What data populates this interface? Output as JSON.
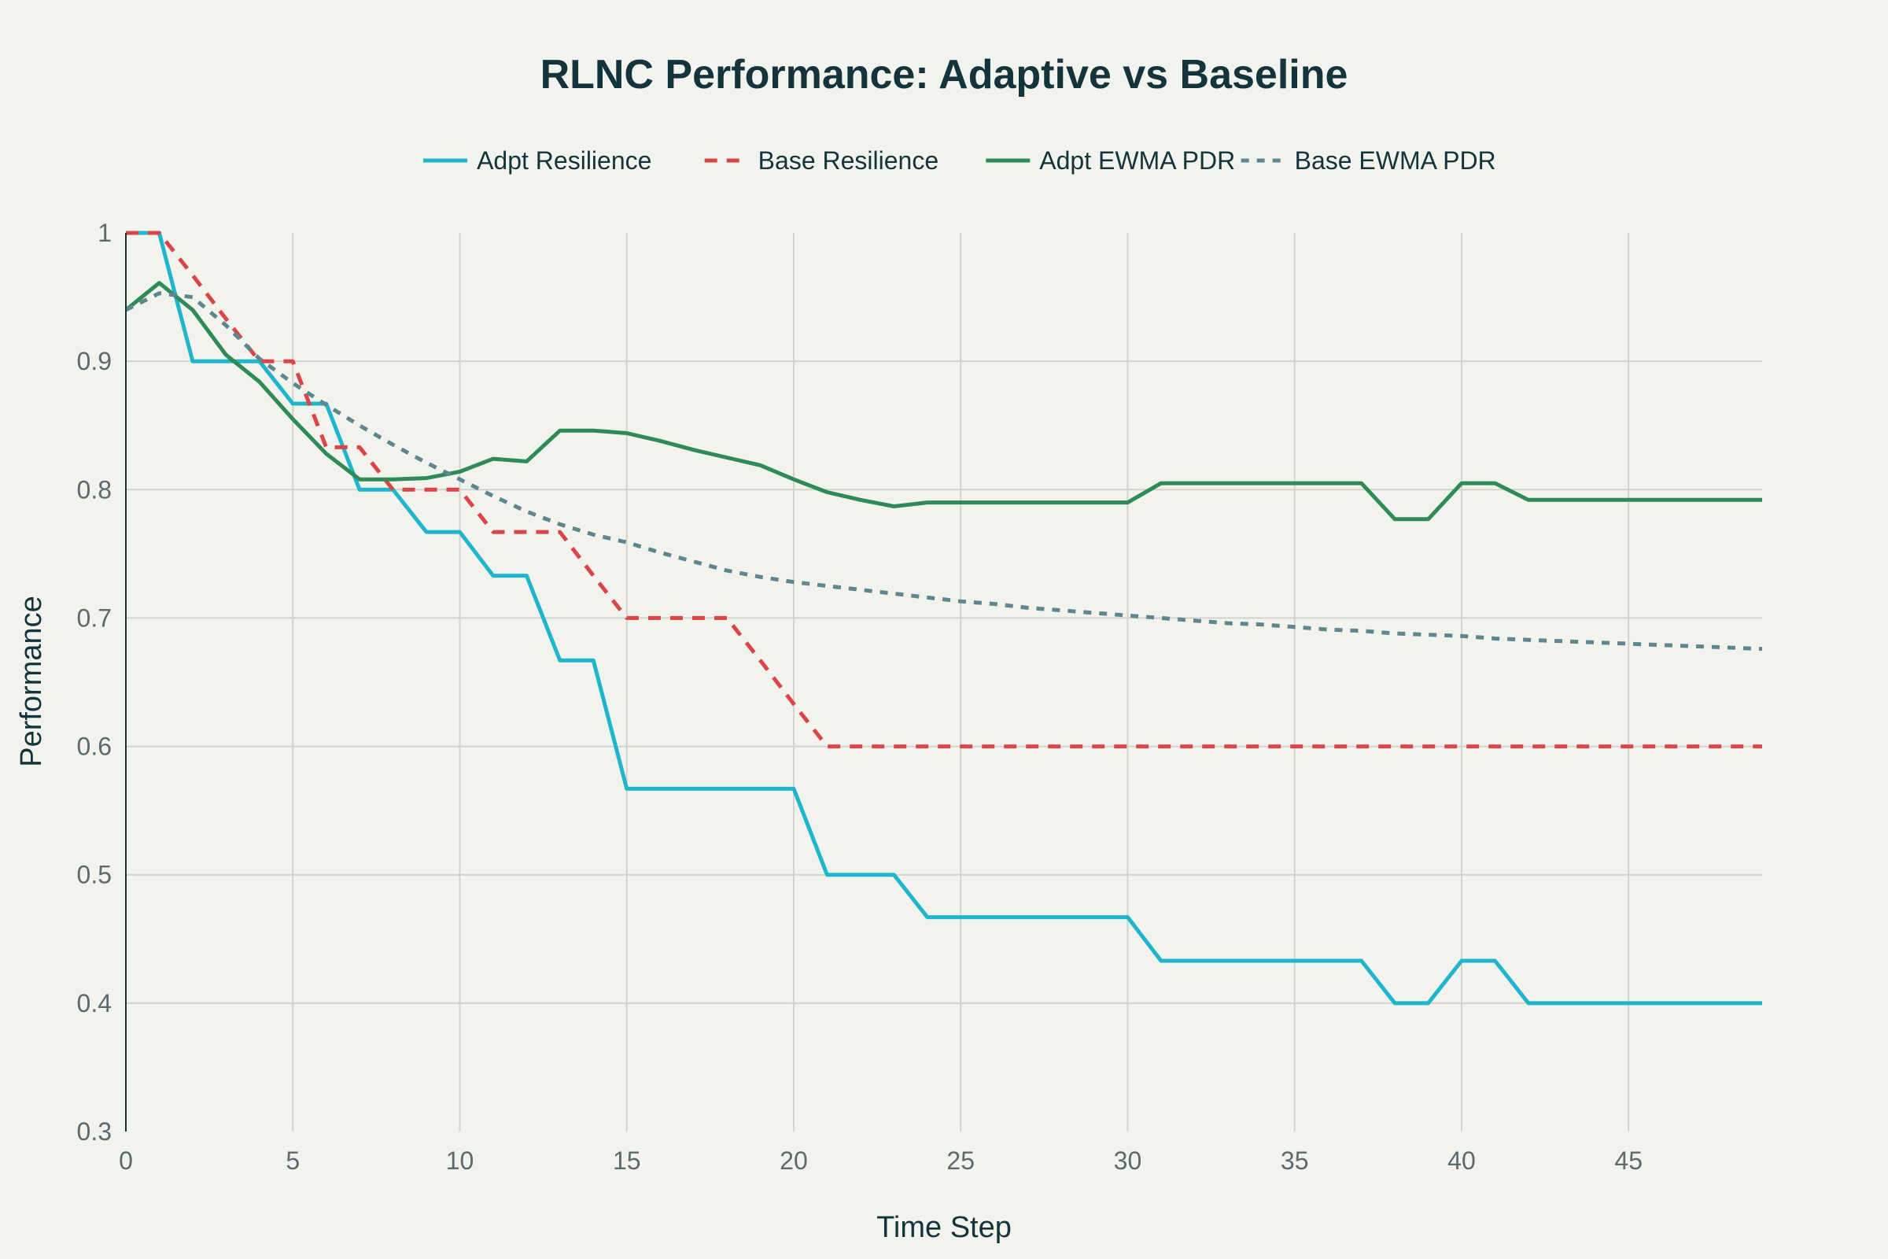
{
  "chart_data": {
    "type": "line",
    "title": "RLNC Performance: Adaptive vs Baseline",
    "xlabel": "Time Step",
    "ylabel": "Performance",
    "xlim": [
      0,
      49
    ],
    "ylim": [
      0.3,
      1.0
    ],
    "x_ticks": [
      0,
      5,
      10,
      15,
      20,
      25,
      30,
      35,
      40,
      45
    ],
    "x_tick_labels": [
      "0",
      "5",
      "10",
      "15",
      "20",
      "25",
      "30",
      "35",
      "40",
      "45"
    ],
    "y_ticks": [
      0.3,
      0.4,
      0.5,
      0.6,
      0.7,
      0.8,
      0.9,
      1.0
    ],
    "y_tick_labels": [
      "0.3",
      "0.4",
      "0.5",
      "0.6",
      "0.7",
      "0.8",
      "0.9",
      "1"
    ],
    "grid": true,
    "legend_position": "top-center",
    "x": [
      0,
      1,
      2,
      3,
      4,
      5,
      6,
      7,
      8,
      9,
      10,
      11,
      12,
      13,
      14,
      15,
      16,
      17,
      18,
      19,
      20,
      21,
      22,
      23,
      24,
      25,
      26,
      27,
      28,
      29,
      30,
      31,
      32,
      33,
      34,
      35,
      36,
      37,
      38,
      39,
      40,
      41,
      42,
      43,
      44,
      45,
      46,
      47,
      48,
      49
    ],
    "series": [
      {
        "name": "Adpt Resilience",
        "color": "#1fb5cc",
        "dash": "solid",
        "values": [
          1.0,
          1.0,
          0.9,
          0.9,
          0.9,
          0.867,
          0.867,
          0.8,
          0.8,
          0.767,
          0.767,
          0.733,
          0.733,
          0.667,
          0.667,
          0.567,
          0.567,
          0.567,
          0.567,
          0.567,
          0.567,
          0.5,
          0.5,
          0.5,
          0.467,
          0.467,
          0.467,
          0.467,
          0.467,
          0.467,
          0.467,
          0.433,
          0.433,
          0.433,
          0.433,
          0.433,
          0.433,
          0.433,
          0.4,
          0.4,
          0.433,
          0.433,
          0.4,
          0.4,
          0.4,
          0.4,
          0.4,
          0.4,
          0.4,
          0.4
        ]
      },
      {
        "name": "Base Resilience",
        "color": "#db4545",
        "dash": "dash",
        "values": [
          1.0,
          1.0,
          0.967,
          0.933,
          0.9,
          0.9,
          0.833,
          0.833,
          0.8,
          0.8,
          0.8,
          0.767,
          0.767,
          0.767,
          0.733,
          0.7,
          0.7,
          0.7,
          0.7,
          0.667,
          0.633,
          0.6,
          0.6,
          0.6,
          0.6,
          0.6,
          0.6,
          0.6,
          0.6,
          0.6,
          0.6,
          0.6,
          0.6,
          0.6,
          0.6,
          0.6,
          0.6,
          0.6,
          0.6,
          0.6,
          0.6,
          0.6,
          0.6,
          0.6,
          0.6,
          0.6,
          0.6,
          0.6,
          0.6,
          0.6
        ]
      },
      {
        "name": "Adpt EWMA PDR",
        "color": "#2e8b57",
        "dash": "solid",
        "values": [
          0.94,
          0.961,
          0.94,
          0.905,
          0.884,
          0.855,
          0.828,
          0.808,
          0.808,
          0.809,
          0.814,
          0.824,
          0.822,
          0.846,
          0.846,
          0.844,
          0.838,
          0.831,
          0.825,
          0.819,
          0.808,
          0.798,
          0.792,
          0.787,
          0.79,
          0.79,
          0.79,
          0.79,
          0.79,
          0.79,
          0.79,
          0.805,
          0.805,
          0.805,
          0.805,
          0.805,
          0.805,
          0.805,
          0.777,
          0.777,
          0.805,
          0.805,
          0.792,
          0.792,
          0.792,
          0.792,
          0.792,
          0.792,
          0.792,
          0.792
        ]
      },
      {
        "name": "Base EWMA PDR",
        "color": "#5d878f",
        "dash": "dot",
        "values": [
          0.94,
          0.953,
          0.95,
          0.928,
          0.902,
          0.883,
          0.866,
          0.85,
          0.835,
          0.821,
          0.808,
          0.795,
          0.783,
          0.773,
          0.765,
          0.759,
          0.751,
          0.744,
          0.737,
          0.732,
          0.728,
          0.725,
          0.722,
          0.719,
          0.716,
          0.713,
          0.711,
          0.708,
          0.706,
          0.704,
          0.702,
          0.7,
          0.698,
          0.696,
          0.695,
          0.693,
          0.691,
          0.69,
          0.688,
          0.687,
          0.686,
          0.684,
          0.683,
          0.682,
          0.681,
          0.68,
          0.679,
          0.678,
          0.677,
          0.676
        ]
      }
    ]
  }
}
